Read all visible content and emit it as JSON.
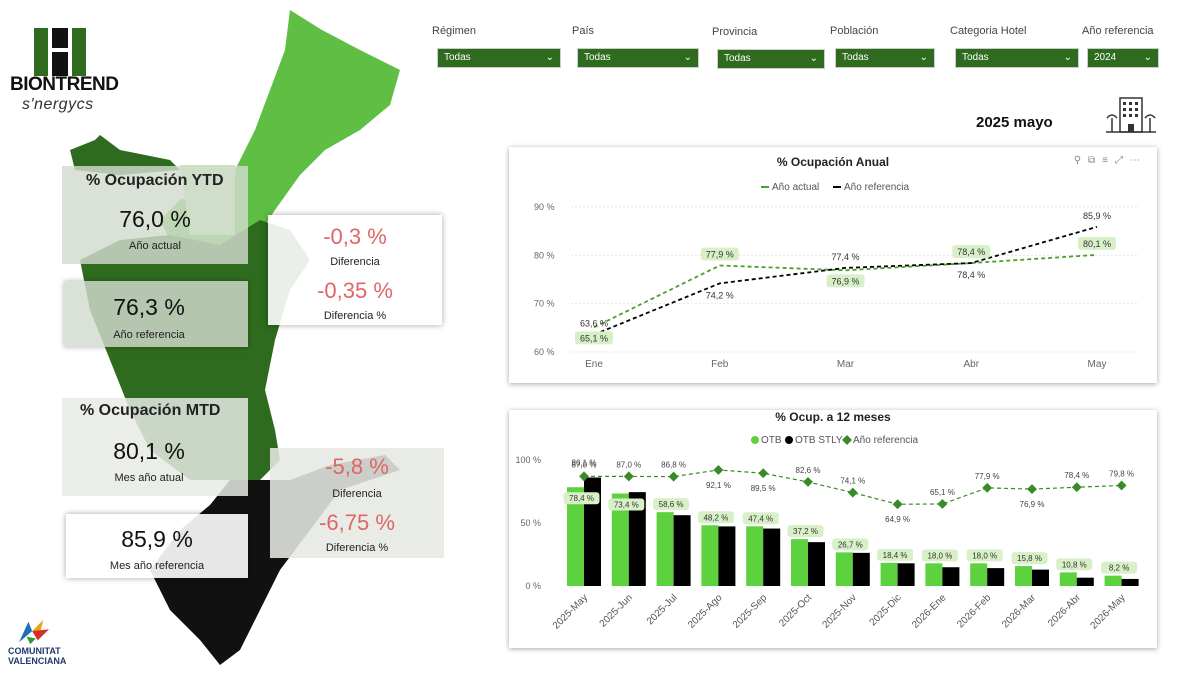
{
  "brand": {
    "name": "BIONTREND",
    "sub": "s'nergycs"
  },
  "footer_logo": {
    "line1": "COMUNITAT",
    "line2": "VALENCIANA"
  },
  "filters": [
    {
      "label": "Régimen",
      "value": "Todas"
    },
    {
      "label": "País",
      "value": "Todas"
    },
    {
      "label": "Provincia",
      "value": "Todas"
    },
    {
      "label": "Población",
      "value": "Todas"
    },
    {
      "label": "Categoria Hotel",
      "value": "Todas"
    },
    {
      "label": "Año referencia",
      "value": "2024"
    }
  ],
  "period": "2025 mayo",
  "ytd": {
    "title": "% Ocupación YTD",
    "actual_value": "76,0 %",
    "actual_label": "Año actual",
    "ref_value": "76,3 %",
    "ref_label": "Año referencia",
    "diff_value": "-0,3 %",
    "diff_label": "Diferencia",
    "diffpct_value": "-0,35 %",
    "diffpct_label": "Diferencia %"
  },
  "mtd": {
    "title": "% Ocupación MTD",
    "actual_value": "80,1 %",
    "actual_label": "Mes año atual",
    "ref_value": "85,9 %",
    "ref_label": "Mes año referencia",
    "diff_value": "-5,8 %",
    "diff_label": "Diferencia",
    "diffpct_value": "-6,75 %",
    "diffpct_label": "Diferencia %"
  },
  "colors": {
    "dark_green": "#2e6b1e",
    "mid_green": "#4aa02c",
    "light_green": "#6cc24a",
    "bright_green": "#5ed13e",
    "label_bg": "#d8f0c8",
    "red": "#e06666"
  },
  "chart_data": [
    {
      "type": "line",
      "title": "% Ocupación Anual",
      "categories": [
        "Ene",
        "Feb",
        "Mar",
        "Abr",
        "May"
      ],
      "series": [
        {
          "name": "Año actual",
          "values": [
            65.1,
            77.9,
            76.9,
            78.4,
            80.1
          ],
          "labels": [
            "65,1 %",
            "77,9 %",
            "76,9 %",
            "78,4 %",
            "80,1 %"
          ],
          "color": "#4aa02c",
          "dash": true
        },
        {
          "name": "Año referencia",
          "values": [
            63.6,
            74.2,
            77.4,
            78.4,
            85.9
          ],
          "labels": [
            "63,6 %",
            "74,2 %",
            "77,4 %",
            "78,4 %",
            "85,9 %"
          ],
          "color": "#000000",
          "dash": true
        }
      ],
      "yticks": [
        "60 %",
        "70 %",
        "80 %",
        "90 %"
      ],
      "ylim": [
        60,
        90
      ],
      "legend": "top-center",
      "grid": true
    },
    {
      "type": "bar",
      "title": "% Ocup. a 12 meses",
      "categories": [
        "2025-May",
        "2025-Jun",
        "2025-Jul",
        "2025-Ago",
        "2025-Sep",
        "2025-Oct",
        "2025-Nov",
        "2025-Dic",
        "2026-Ene",
        "2026-Feb",
        "2026-Mar",
        "2026-Abr",
        "2026-May"
      ],
      "series": [
        {
          "name": "OTB",
          "values": [
            78.4,
            73.4,
            58.6,
            48.2,
            47.4,
            37.2,
            26.7,
            18.4,
            18.0,
            18.0,
            15.8,
            10.8,
            8.2
          ],
          "labels": [
            "78,4 %",
            "73,4 %",
            "58,6 %",
            "48,2 %",
            "47,4 %",
            "37,2 %",
            "26,7 %",
            "18,4 %",
            "18,0 %",
            "18,0 %",
            "15,8 %",
            "10,8 %",
            "8,2 %"
          ],
          "color": "#5ed13e"
        },
        {
          "name": "OTB STLY",
          "values": [
            86.1,
            74.5,
            56.2,
            47.3,
            45.6,
            34.8,
            26.3,
            18.0,
            14.9,
            14.2,
            13.0,
            6.6,
            5.6
          ],
          "color": "#000000"
        },
        {
          "name": "Año referencia",
          "values": [
            87.0,
            87.0,
            86.8,
            92.1,
            89.5,
            82.6,
            74.1,
            64.9,
            65.1,
            77.9,
            76.9,
            78.4,
            79.8
          ],
          "labels": [
            "87,0 %",
            "87,0 %",
            "86,8 %",
            "92,1 %",
            "89,5 %",
            "82,6 %",
            "74,1 %",
            "64,9 %",
            "65,1 %",
            "77,9 %",
            "76,9 %",
            "78,4 %",
            "79,8 %"
          ],
          "color": "#3a8a2a"
        }
      ],
      "top_labels": [
        "86,1 %"
      ],
      "yticks": [
        "0 %",
        "50 %",
        "100 %"
      ],
      "ylim": [
        0,
        100
      ],
      "legend": "top-center"
    }
  ]
}
